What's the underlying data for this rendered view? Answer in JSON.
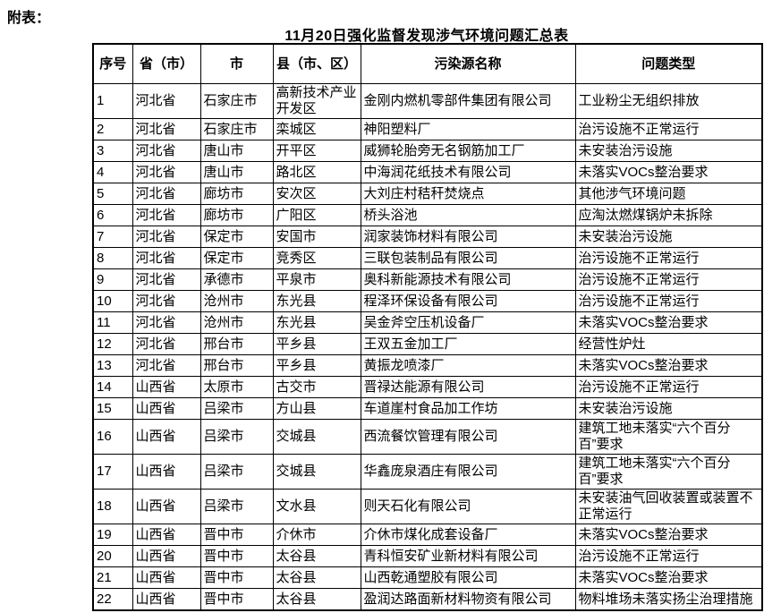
{
  "page": {
    "annex_label": "附表：",
    "title": "11月20日强化监督发现涉气环境问题汇总表"
  },
  "table": {
    "headers": [
      "序号",
      "省（市）",
      "市",
      "县（市、区）",
      "污染源名称",
      "问题类型"
    ],
    "rows": [
      {
        "no": "1",
        "province": "河北省",
        "city": "石家庄市",
        "county": "高新技术产业开发区",
        "source": "金刚内燃机零部件集团有限公司",
        "problem": "工业粉尘无组织排放"
      },
      {
        "no": "2",
        "province": "河北省",
        "city": "石家庄市",
        "county": "栾城区",
        "source": "神阳塑料厂",
        "problem": "治污设施不正常运行"
      },
      {
        "no": "3",
        "province": "河北省",
        "city": "唐山市",
        "county": "开平区",
        "source": "威狮轮胎旁无名钢筋加工厂",
        "problem": "未安装治污设施"
      },
      {
        "no": "4",
        "province": "河北省",
        "city": "唐山市",
        "county": "路北区",
        "source": "中海润花纸技术有限公司",
        "problem": "未落实VOCs整治要求"
      },
      {
        "no": "5",
        "province": "河北省",
        "city": "廊坊市",
        "county": "安次区",
        "source": "大刘庄村秸秆焚烧点",
        "problem": "其他涉气环境问题"
      },
      {
        "no": "6",
        "province": "河北省",
        "city": "廊坊市",
        "county": "广阳区",
        "source": "桥头浴池",
        "problem": "应淘汰燃煤锅炉未拆除"
      },
      {
        "no": "7",
        "province": "河北省",
        "city": "保定市",
        "county": "安国市",
        "source": "润家装饰材料有限公司",
        "problem": "未安装治污设施"
      },
      {
        "no": "8",
        "province": "河北省",
        "city": "保定市",
        "county": "竞秀区",
        "source": "三联包装制品有限公司",
        "problem": "治污设施不正常运行"
      },
      {
        "no": "9",
        "province": "河北省",
        "city": "承德市",
        "county": "平泉市",
        "source": "奥科新能源技术有限公司",
        "problem": "治污设施不正常运行"
      },
      {
        "no": "10",
        "province": "河北省",
        "city": "沧州市",
        "county": "东光县",
        "source": "程泽环保设备有限公司",
        "problem": "治污设施不正常运行"
      },
      {
        "no": "11",
        "province": "河北省",
        "city": "沧州市",
        "county": "东光县",
        "source": "吴金斧空压机设备厂",
        "problem": "未落实VOCs整治要求"
      },
      {
        "no": "12",
        "province": "河北省",
        "city": "邢台市",
        "county": "平乡县",
        "source": "王双五金加工厂",
        "problem": "经营性炉灶"
      },
      {
        "no": "13",
        "province": "河北省",
        "city": "邢台市",
        "county": "平乡县",
        "source": "黄振龙喷漆厂",
        "problem": "未落实VOCs整治要求"
      },
      {
        "no": "14",
        "province": "山西省",
        "city": "太原市",
        "county": "古交市",
        "source": "晋禄达能源有限公司",
        "problem": "治污设施不正常运行"
      },
      {
        "no": "15",
        "province": "山西省",
        "city": "吕梁市",
        "county": "方山县",
        "source": "车道崖村食品加工作坊",
        "problem": "未安装治污设施"
      },
      {
        "no": "16",
        "province": "山西省",
        "city": "吕梁市",
        "county": "交城县",
        "source": "西流餐饮管理有限公司",
        "problem": "建筑工地未落实“六个百分百”要求"
      },
      {
        "no": "17",
        "province": "山西省",
        "city": "吕梁市",
        "county": "交城县",
        "source": "华鑫庞泉酒庄有限公司",
        "problem": "建筑工地未落实“六个百分百”要求"
      },
      {
        "no": "18",
        "province": "山西省",
        "city": "吕梁市",
        "county": "文水县",
        "source": "则天石化有限公司",
        "problem": "未安装油气回收装置或装置不正常运行"
      },
      {
        "no": "19",
        "province": "山西省",
        "city": "晋中市",
        "county": "介休市",
        "source": "介休市煤化成套设备厂",
        "problem": "未落实VOCs整治要求"
      },
      {
        "no": "20",
        "province": "山西省",
        "city": "晋中市",
        "county": "太谷县",
        "source": "青科恒安矿业新材料有限公司",
        "problem": "治污设施不正常运行"
      },
      {
        "no": "21",
        "province": "山西省",
        "city": "晋中市",
        "county": "太谷县",
        "source": "山西乾通塑胶有限公司",
        "problem": "未落实VOCs整治要求"
      },
      {
        "no": "22",
        "province": "山西省",
        "city": "晋中市",
        "county": "太谷县",
        "source": "盈润达路面新材料物资有限公司",
        "problem": "物料堆场未落实扬尘治理措施"
      }
    ]
  }
}
